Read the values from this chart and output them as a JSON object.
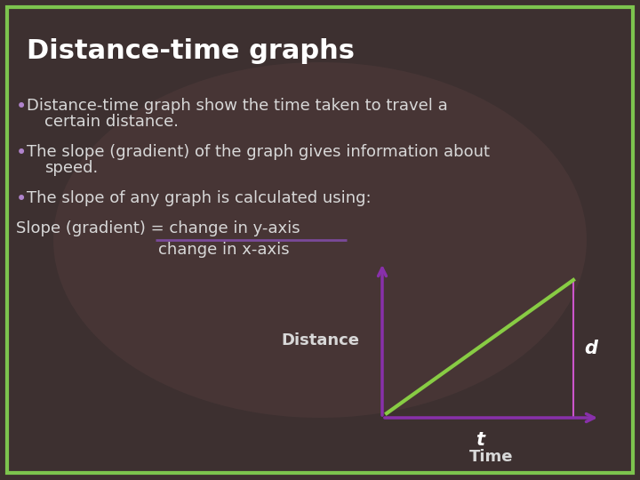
{
  "title": "Distance-time graphs",
  "title_color": "#ffffff",
  "title_fontsize": 22,
  "background_color": "#3d3030",
  "border_color": "#7dc44e",
  "bullet_color": "#b084cc",
  "text_color": "#d8d8d8",
  "bullet_points": [
    "Distance-time graph show the time taken to travel a\n  certain distance.",
    "The slope (gradient) of the graph gives information about\n  speed.",
    "The slope of any graph is calculated using:"
  ],
  "slope_line1": "Slope (gradient) = change in y-axis",
  "slope_line2": "          change in x-axis",
  "fraction_bar_color": "#7a4a9a",
  "axis_color": "#8830aa",
  "line_color": "#88cc44",
  "annotation_color": "#ffffff",
  "box_color": "#cc55cc",
  "xlabel": "Time",
  "ylabel": "Distance",
  "d_label": "d",
  "t_label": "t",
  "text_fontsize": 12,
  "bullet_fontsize": 13
}
